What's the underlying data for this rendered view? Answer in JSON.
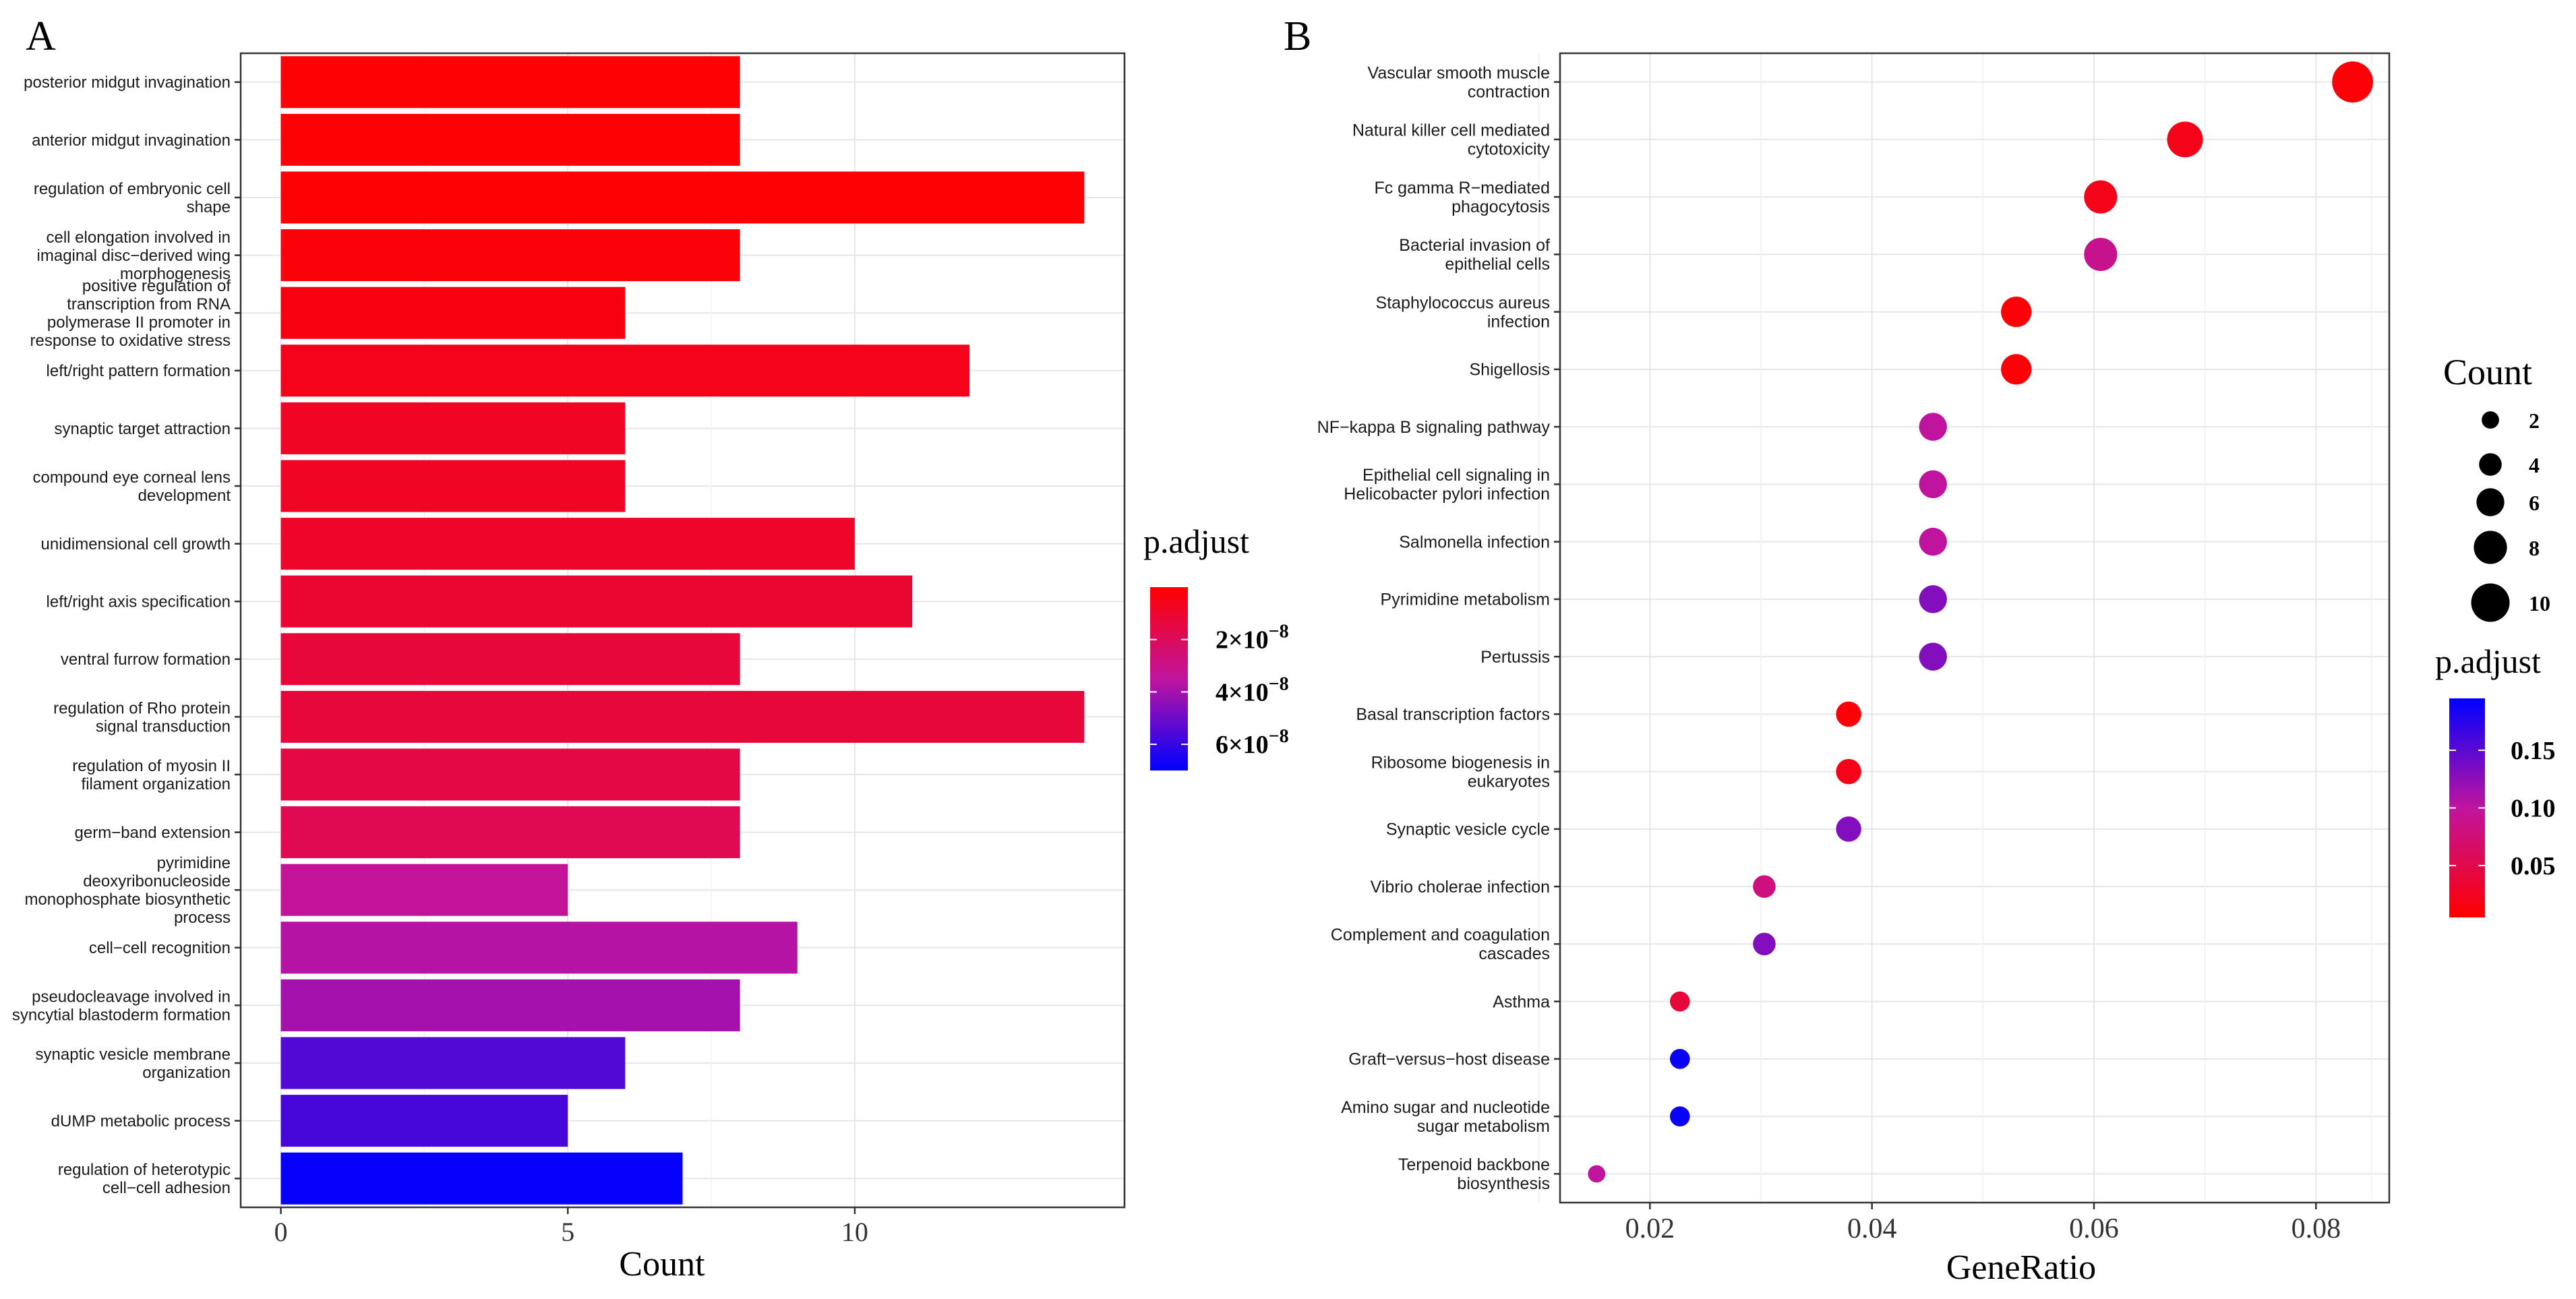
{
  "panels": {
    "a_label": "A",
    "b_label": "B"
  },
  "colors": {
    "high": "#ff0000",
    "mid": "#c0149e",
    "low": "#0000ff",
    "grid": "#e6e6e6",
    "frame": "#333333"
  },
  "chart_data": [
    {
      "type": "bar",
      "orientation": "horizontal",
      "panel": "A",
      "categories": [
        "posterior midgut invagination",
        "anterior midgut invagination",
        "regulation of embryonic cell shape",
        "cell elongation involved in imaginal disc-derived wing morphogenesis",
        "positive regulation of transcription from RNA polymerase II promoter in response to oxidative stress",
        "left/right pattern formation",
        "synaptic target attraction",
        "compound eye corneal lens development",
        "unidimensional cell growth",
        "left/right axis specification",
        "ventral furrow formation",
        "regulation of Rho protein signal transduction",
        "regulation of myosin II filament organization",
        "germ-band extension",
        "pyrimidine deoxyribonucleoside monophosphate biosynthetic process",
        "cell-cell recognition",
        "pseudocleavage involved in syncytial blastoderm formation",
        "synaptic vesicle membrane organization",
        "dUMP metabolic process",
        "regulation of heterotypic cell-cell adhesion"
      ],
      "label_lines": [
        [
          "posterior midgut invagination"
        ],
        [
          "anterior midgut invagination"
        ],
        [
          "regulation of embryonic cell",
          "shape"
        ],
        [
          "cell elongation involved in",
          "imaginal disc−derived wing",
          "morphogenesis"
        ],
        [
          "positive regulation of",
          "transcription from RNA",
          "polymerase II promoter in",
          "response to oxidative stress"
        ],
        [
          "left/right pattern formation"
        ],
        [
          "synaptic target attraction"
        ],
        [
          "compound eye corneal lens",
          "development"
        ],
        [
          "unidimensional cell growth"
        ],
        [
          "left/right axis specification"
        ],
        [
          "ventral furrow formation"
        ],
        [
          "regulation of Rho protein",
          "signal transduction"
        ],
        [
          "regulation of myosin II",
          "filament organization"
        ],
        [
          "germ−band extension"
        ],
        [
          "pyrimidine",
          "deoxyribonucleoside",
          "monophosphate biosynthetic",
          "process"
        ],
        [
          "cell−cell recognition"
        ],
        [
          "pseudocleavage involved in",
          "syncytial blastoderm formation"
        ],
        [
          "synaptic vesicle membrane",
          "organization"
        ],
        [
          "dUMP metabolic process"
        ],
        [
          "regulation of heterotypic",
          "cell−cell adhesion"
        ]
      ],
      "values": [
        8,
        8,
        14,
        8,
        6,
        12,
        6,
        6,
        10,
        11,
        8,
        14,
        8,
        8,
        5,
        9,
        8,
        6,
        5,
        7
      ],
      "p_adjust": [
        1e-09,
        1e-09,
        1e-09,
        2e-09,
        4e-09,
        6e-09,
        8e-09,
        8e-09,
        9e-09,
        1.1e-08,
        1.3e-08,
        1.3e-08,
        1.5e-08,
        1.8e-08,
        3.4e-08,
        3.7e-08,
        4e-08,
        5.5e-08,
        5.7e-08,
        6.9e-08
      ],
      "xlim": [
        -0.7,
        14.7
      ],
      "x_ticks": [
        0,
        5,
        10
      ],
      "x_tick_labels": [
        "0",
        "5",
        "10"
      ],
      "xlabel": "Count",
      "ylabel": "",
      "grid": true,
      "legend": {
        "title": "p.adjust",
        "placement": "right",
        "range": [
          0,
          7e-08
        ],
        "ticks": [
          2e-08,
          4e-08,
          6e-08
        ],
        "tick_labels": [
          {
            "base": "2×10",
            "exp": "−8"
          },
          {
            "base": "4×10",
            "exp": "−8"
          },
          {
            "base": "6×10",
            "exp": "−8"
          }
        ]
      }
    },
    {
      "type": "scatter",
      "panel": "B",
      "categories": [
        "Vascular smooth muscle contraction",
        "Natural killer cell mediated cytotoxicity",
        "Fc gamma R-mediated phagocytosis",
        "Bacterial invasion of epithelial cells",
        "Staphylococcus aureus infection",
        "Shigellosis",
        "NF-kappa B signaling pathway",
        "Epithelial cell signaling in Helicobacter pylori infection",
        "Salmonella infection",
        "Pyrimidine metabolism",
        "Pertussis",
        "Basal transcription factors",
        "Ribosome biogenesis in eukaryotes",
        "Synaptic vesicle cycle",
        "Vibrio cholerae infection",
        "Complement and coagulation cascades",
        "Asthma",
        "Graft-versus-host disease",
        "Amino sugar and nucleotide sugar metabolism",
        "Terpenoid backbone biosynthesis"
      ],
      "label_lines": [
        [
          "Vascular smooth muscle",
          "contraction"
        ],
        [
          "Natural killer cell mediated",
          "cytotoxicity"
        ],
        [
          "Fc gamma R−mediated",
          "phagocytosis"
        ],
        [
          "Bacterial invasion of",
          "epithelial cells"
        ],
        [
          "Staphylococcus aureus",
          "infection"
        ],
        [
          "Shigellosis"
        ],
        [
          "NF−kappa B signaling pathway"
        ],
        [
          "Epithelial cell signaling in",
          "Helicobacter pylori infection"
        ],
        [
          "Salmonella infection"
        ],
        [
          "Pyrimidine metabolism"
        ],
        [
          "Pertussis"
        ],
        [
          "Basal transcription factors"
        ],
        [
          "Ribosome biogenesis in",
          "eukaryotes"
        ],
        [
          "Synaptic vesicle cycle"
        ],
        [
          "Vibrio cholerae infection"
        ],
        [
          "Complement and coagulation",
          "cascades"
        ],
        [
          "Asthma"
        ],
        [
          "Graft−versus−host disease"
        ],
        [
          "Amino sugar and nucleotide",
          "sugar metabolism"
        ],
        [
          "Terpenoid backbone",
          "biosynthesis"
        ]
      ],
      "gene_ratio": [
        0.0833,
        0.0682,
        0.0606,
        0.0606,
        0.053,
        0.053,
        0.0455,
        0.0455,
        0.0455,
        0.0455,
        0.0455,
        0.0379,
        0.0379,
        0.0379,
        0.0303,
        0.0303,
        0.0227,
        0.0227,
        0.0227,
        0.0152
      ],
      "count": [
        11,
        9,
        8,
        8,
        7,
        7,
        6,
        6,
        6,
        6,
        6,
        5,
        5,
        5,
        4,
        4,
        3,
        3,
        3,
        2
      ],
      "p_adjust": [
        0.01,
        0.02,
        0.02,
        0.09,
        0.01,
        0.01,
        0.1,
        0.1,
        0.1,
        0.13,
        0.13,
        0.01,
        0.02,
        0.13,
        0.08,
        0.13,
        0.04,
        0.19,
        0.19,
        0.1
      ],
      "xlim": [
        0.0119,
        0.0866
      ],
      "x_ticks": [
        0.02,
        0.04,
        0.06,
        0.08
      ],
      "x_tick_labels": [
        "0.02",
        "0.04",
        "0.06",
        "0.08"
      ],
      "xlabel": "GeneRatio",
      "ylabel": "",
      "grid": true,
      "size_legend": {
        "title": "Count",
        "placement": "right",
        "values": [
          2,
          4,
          6,
          8,
          10
        ],
        "labels": [
          "2",
          "4",
          "6",
          "8",
          "10"
        ]
      },
      "color_legend": {
        "title": "p.adjust",
        "placement": "right",
        "range": [
          0.005,
          0.195
        ],
        "ticks": [
          0.05,
          0.1,
          0.15
        ],
        "tick_labels": [
          "0.05",
          "0.10",
          "0.15"
        ]
      }
    }
  ]
}
